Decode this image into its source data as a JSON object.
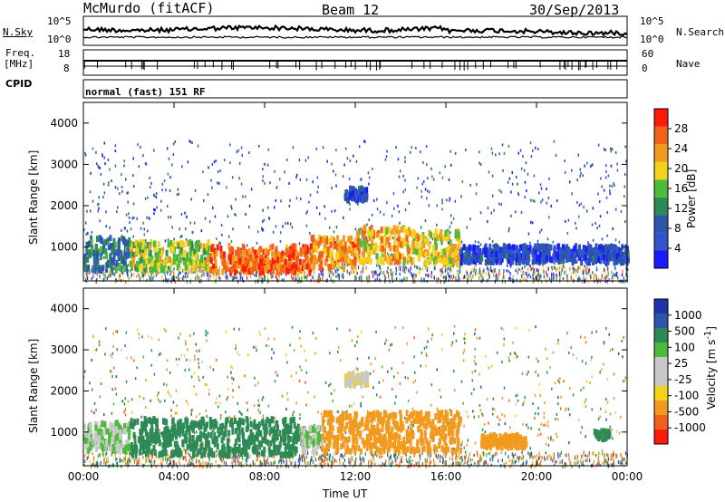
{
  "header": {
    "station": "McMurdo (fitACF)",
    "beam": "Beam 12",
    "date": "30/Sep/2013"
  },
  "aux": {
    "nsky_label": "N.Sky",
    "nsearch_label": "N.Search",
    "noise_tick_top": "10^5",
    "noise_tick_bottom": "10^0",
    "freq_label_1": "Freq.",
    "freq_label_2": "[MHz]",
    "freq_tick_top": "18",
    "freq_tick_bottom": "8",
    "nave_label": "Nave",
    "nave_tick_top": "60",
    "nave_tick_bottom": "0",
    "cpid_label": "CPID",
    "cpid_value": "normal (fast) 151 RF"
  },
  "colors": {
    "power": [
      "#1a1aff",
      "#3355cc",
      "#2a55a8",
      "#2e8a55",
      "#4cba3a",
      "#f2d21a",
      "#f29a1e",
      "#f2601a",
      "#ff1a0a"
    ],
    "velocity": [
      "#ff1a0a",
      "#f2601a",
      "#f29a1e",
      "#f2d21a",
      "#c8c8c8",
      "#c8c8c8",
      "#4cba3a",
      "#2e8a55",
      "#2a55a8",
      "#2233aa"
    ]
  },
  "chart_data": [
    {
      "type": "heatmap",
      "quantity": "power",
      "ylabel": "Slant Range [km]",
      "xlim": [
        "00:00",
        "24:00"
      ],
      "ylim": [
        180,
        4500
      ],
      "y_ticks": [
        "1000",
        "2000",
        "3000",
        "4000"
      ],
      "colorbar_label": "Power [dB]",
      "colorbar_ticks": [
        "4",
        "8",
        "12",
        "16",
        "20",
        "24",
        "28"
      ],
      "colorbar_range": [
        0,
        32
      ],
      "regions": [
        {
          "t_start": 0.0,
          "t_end": 2.0,
          "r_min": 500,
          "r_max": 1300,
          "value": 10
        },
        {
          "t_start": 2.0,
          "t_end": 5.5,
          "r_min": 500,
          "r_max": 1200,
          "value": 18
        },
        {
          "t_start": 5.5,
          "t_end": 10.0,
          "r_min": 450,
          "r_max": 1100,
          "value": 26
        },
        {
          "t_start": 10.0,
          "t_end": 12.0,
          "r_min": 550,
          "r_max": 1300,
          "value": 24
        },
        {
          "t_start": 12.0,
          "t_end": 14.5,
          "r_min": 700,
          "r_max": 1550,
          "value": 22
        },
        {
          "t_start": 14.5,
          "t_end": 16.6,
          "r_min": 650,
          "r_max": 1450,
          "value": 20
        },
        {
          "t_start": 16.6,
          "t_end": 24.0,
          "r_min": 700,
          "r_max": 1100,
          "value": 6
        },
        {
          "t_start": 11.5,
          "t_end": 12.5,
          "r_min": 2200,
          "r_max": 2500,
          "value": 6
        }
      ]
    },
    {
      "type": "heatmap",
      "quantity": "velocity",
      "ylabel": "Slant Range [km]",
      "xlabel": "Time UT",
      "xlim": [
        "00:00",
        "24:00"
      ],
      "x_ticks": [
        "00:00",
        "04:00",
        "08:00",
        "12:00",
        "16:00",
        "20:00",
        "00:00"
      ],
      "ylim": [
        180,
        4500
      ],
      "y_ticks": [
        "1000",
        "2000",
        "3000",
        "4000"
      ],
      "colorbar_label": "Velocity [m s^-1]",
      "colorbar_ticks": [
        "-1000",
        "-500",
        "-100",
        "-25",
        "25",
        "100",
        "500",
        "1000"
      ],
      "regions": [
        {
          "t_start": 0.0,
          "t_end": 2.0,
          "r_min": 600,
          "r_max": 1300,
          "value": 25
        },
        {
          "t_start": 2.0,
          "t_end": 9.5,
          "r_min": 500,
          "r_max": 1400,
          "value": 300
        },
        {
          "t_start": 9.5,
          "t_end": 10.5,
          "r_min": 600,
          "r_max": 1200,
          "value": 25
        },
        {
          "t_start": 10.5,
          "t_end": 16.6,
          "r_min": 600,
          "r_max": 1550,
          "value": -200
        },
        {
          "t_start": 11.5,
          "t_end": 12.5,
          "r_min": 2200,
          "r_max": 2500,
          "value": -20
        },
        {
          "t_start": 17.5,
          "t_end": 19.5,
          "r_min": 700,
          "r_max": 1000,
          "value": -300
        },
        {
          "t_start": 22.5,
          "t_end": 23.2,
          "r_min": 900,
          "r_max": 1100,
          "value": 150
        }
      ]
    }
  ]
}
